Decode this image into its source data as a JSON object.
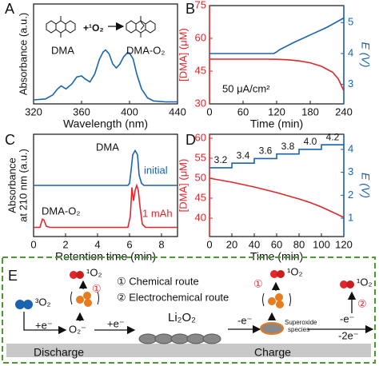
{
  "chart_data": [
    {
      "type": "line",
      "panel": "A",
      "xlabel": "Wavelength (nm)",
      "ylabel": [
        "Absorbance (a.u.)"
      ],
      "xlim": [
        320,
        440
      ],
      "xticks": [
        320,
        360,
        400,
        440
      ],
      "ylim": [
        0,
        1
      ],
      "annotations": [
        "DMA",
        "+¹O₂",
        "DMA-O₂"
      ],
      "series": [
        {
          "name": "DMA",
          "color": "#1a63b0",
          "x": [
            320,
            330,
            336,
            340,
            343,
            347,
            352,
            356,
            360,
            363,
            367,
            371,
            375,
            378,
            380,
            383,
            386,
            389,
            392,
            395,
            398,
            400,
            403,
            406,
            410,
            415,
            420,
            430,
            440
          ],
          "values": [
            0.04,
            0.05,
            0.09,
            0.15,
            0.18,
            0.15,
            0.2,
            0.27,
            0.28,
            0.25,
            0.22,
            0.3,
            0.45,
            0.52,
            0.54,
            0.5,
            0.4,
            0.36,
            0.4,
            0.47,
            0.51,
            0.51,
            0.45,
            0.3,
            0.15,
            0.06,
            0.03,
            0.02,
            0.02
          ]
        }
      ]
    },
    {
      "type": "line",
      "panel": "B",
      "xlabel": "Time (min)",
      "ylabel": [
        "[DMA] (μM)"
      ],
      "y2label": "E (V)",
      "xlim": [
        0,
        240
      ],
      "xticks": [
        0,
        60,
        120,
        180,
        240
      ],
      "ylim": [
        30,
        75
      ],
      "yticks": [
        30,
        45,
        60,
        75
      ],
      "y2lim": [
        2.37,
        5.55
      ],
      "y2ticks": [
        3,
        4,
        5
      ],
      "annotations": [
        "50 μA/cm²"
      ],
      "series": [
        {
          "name": "[DMA]",
          "color": "#e3262c",
          "axis": "y",
          "x": [
            0,
            100,
            120,
            140,
            160,
            180,
            200,
            220,
            230,
            240
          ],
          "values": [
            50.5,
            50.5,
            50.4,
            50.2,
            49.7,
            48.8,
            47.2,
            44.5,
            41.5,
            36
          ]
        },
        {
          "name": "E",
          "color": "#1a63b0",
          "axis": "y2",
          "x": [
            0,
            115,
            120,
            125,
            150,
            180,
            210,
            240
          ],
          "values": [
            4.0,
            4.0,
            4.05,
            4.12,
            4.35,
            4.6,
            4.85,
            5.15
          ]
        }
      ]
    },
    {
      "type": "line",
      "panel": "C",
      "xlabel": "Retention time (min)",
      "ylabel": [
        "Absorbance",
        "at 210 nm (a.u.)"
      ],
      "xlim": [
        0,
        9
      ],
      "xticks": [
        0,
        2,
        4,
        6,
        8
      ],
      "ylim": [
        0,
        1
      ],
      "annotations": [
        "DMA",
        "initial",
        "DMA-O₂",
        "1 mAh"
      ],
      "series": [
        {
          "name": "initial",
          "color": "#1a63b0",
          "x": [
            0,
            5.9,
            6.0,
            6.1,
            6.2,
            6.35,
            6.5,
            6.6,
            6.75,
            6.9,
            9
          ],
          "values": [
            0.5,
            0.5,
            0.52,
            0.65,
            0.8,
            0.84,
            0.8,
            0.6,
            0.52,
            0.5,
            0.5
          ]
        },
        {
          "name": "1 mAh",
          "color": "#e3262c",
          "x": [
            0,
            0.4,
            0.55,
            0.65,
            0.8,
            1.0,
            5.9,
            6.05,
            6.15,
            6.25,
            6.35,
            6.45,
            6.55,
            6.65,
            6.8,
            7.0,
            9
          ],
          "values": [
            0.09,
            0.09,
            0.17,
            0.16,
            0.1,
            0.09,
            0.09,
            0.2,
            0.48,
            0.35,
            0.45,
            0.5,
            0.45,
            0.3,
            0.12,
            0.09,
            0.09
          ]
        }
      ]
    },
    {
      "type": "line",
      "panel": "D",
      "xlabel": "Time (min)",
      "ylabel": [
        "[DMA] (μM)"
      ],
      "y2label": "E (V)",
      "xlim": [
        0,
        120
      ],
      "xticks": [
        0,
        20,
        40,
        60,
        80,
        100,
        120
      ],
      "ylim": [
        35.4,
        61
      ],
      "yticks": [
        40,
        45,
        50,
        55,
        60
      ],
      "y2lim": [
        0.2,
        4.66
      ],
      "y2ticks": [
        1,
        2,
        3,
        4
      ],
      "annotations": [
        "3.2",
        "3.4",
        "3.6",
        "3.8",
        "4.0",
        "4.2"
      ],
      "series": [
        {
          "name": "[DMA]",
          "color": "#e3262c",
          "axis": "y",
          "x": [
            0,
            10,
            20,
            30,
            40,
            50,
            60,
            70,
            80,
            90,
            100,
            110,
            120
          ],
          "values": [
            50,
            49.5,
            49,
            48.4,
            47.8,
            47.1,
            46.4,
            45.6,
            44.8,
            43.9,
            42.8,
            41.5,
            40.2
          ]
        },
        {
          "name": "E",
          "color": "#1a63b0",
          "axis": "y2",
          "x": [
            0,
            20,
            20,
            40,
            40,
            60,
            60,
            80,
            80,
            100,
            100,
            120
          ],
          "values": [
            3.2,
            3.2,
            3.4,
            3.4,
            3.6,
            3.6,
            3.8,
            3.8,
            4.0,
            4.0,
            4.2,
            4.2
          ]
        }
      ]
    }
  ],
  "scheme": {
    "panel": "E",
    "triplet": "³O₂",
    "e1": "+e⁻",
    "superoxide": "O₂⁻",
    "e2": "+e⁻",
    "singlet_1": "¹O₂",
    "route_1_mark": "①",
    "legend": [
      "① Chemical route",
      "② Electrochemical route"
    ],
    "product": "Li₂O₂",
    "e3": "-e⁻",
    "species": [
      "Superoxide",
      "species"
    ],
    "route_1_mark_charge": "①",
    "singlet_2": "¹O₂",
    "e4": "-e⁻",
    "e5": "-2e⁻",
    "route_2_mark": "②",
    "singlet_3": "¹O₂",
    "discharge": "Discharge",
    "charge": "Charge"
  }
}
